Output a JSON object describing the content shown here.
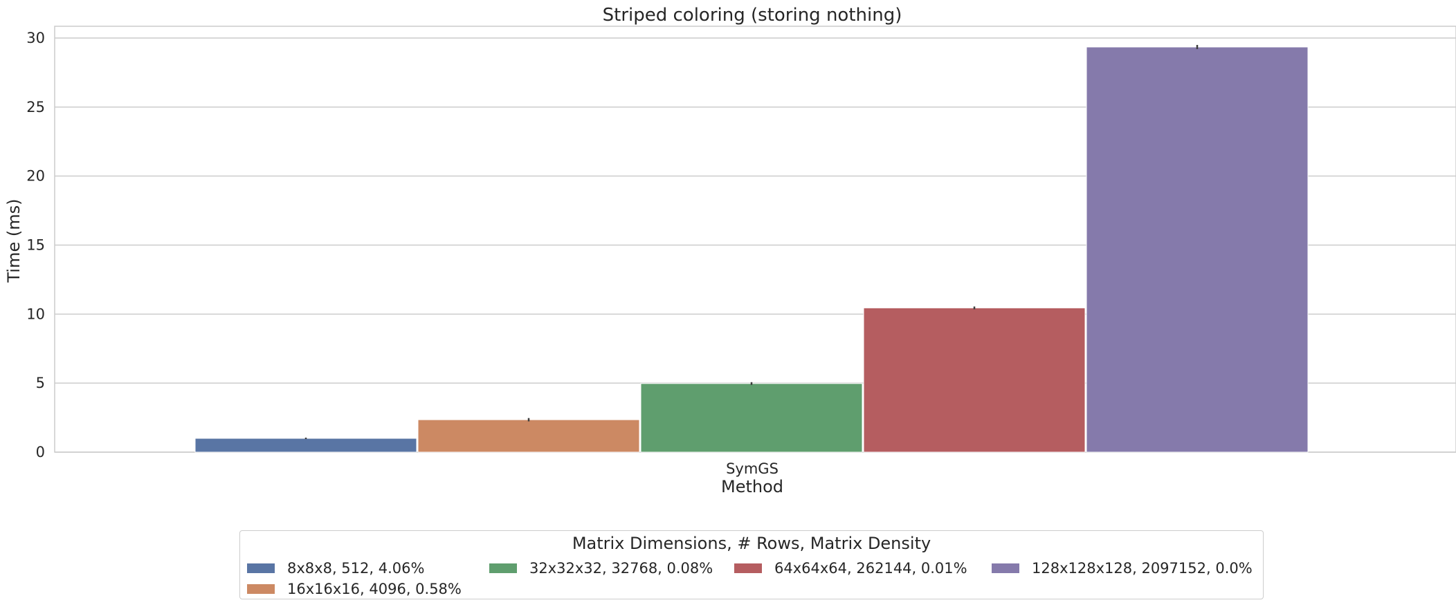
{
  "chart_data": {
    "type": "bar",
    "title": "Striped coloring (storing nothing)",
    "xlabel": "Method",
    "ylabel": "Time (ms)",
    "categories": [
      "SymGS"
    ],
    "ylim": [
      0,
      31
    ],
    "yticks": [
      0,
      5,
      10,
      15,
      20,
      25,
      30
    ],
    "grid": true,
    "legend_position": "bottom-center",
    "legend_title": "Matrix Dimensions, # Rows, Matrix Density",
    "series": [
      {
        "name": "8x8x8, 512, 4.06%",
        "values": [
          1.0
        ],
        "color": "#5975a4"
      },
      {
        "name": "16x16x16, 4096, 0.58%",
        "values": [
          2.35
        ],
        "color": "#cc8963"
      },
      {
        "name": "32x32x32, 32768, 0.08%",
        "values": [
          4.97
        ],
        "color": "#5f9e6e"
      },
      {
        "name": "64x64x64, 262144, 0.01%",
        "values": [
          10.45
        ],
        "color": "#b55d60"
      },
      {
        "name": "128x128x128, 2097152, 0.0%",
        "values": [
          29.35
        ],
        "color": "#857aab"
      }
    ],
    "error_bars": [
      0.05,
      0.12,
      0.1,
      0.1,
      0.15
    ]
  }
}
